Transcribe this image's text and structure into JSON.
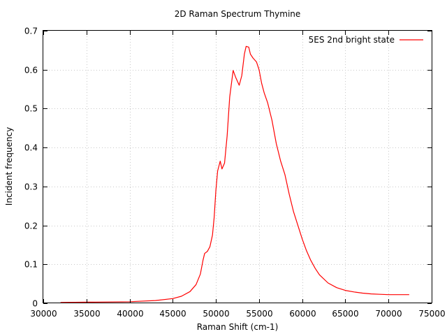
{
  "chart_data": {
    "type": "line",
    "title": "2D Raman Spectrum Thymine",
    "xlabel": "Raman Shift (cm-1)",
    "ylabel": "Incident frequency",
    "xlim": [
      30000,
      75000
    ],
    "ylim": [
      0,
      0.7
    ],
    "x_ticks": [
      "30000",
      "35000",
      "40000",
      "45000",
      "50000",
      "55000",
      "60000",
      "65000",
      "70000",
      "75000"
    ],
    "y_ticks": [
      "0",
      "0.1",
      "0.2",
      "0.3",
      "0.4",
      "0.5",
      "0.6",
      "0.7"
    ],
    "grid": true,
    "legend_position": "top-right",
    "series": [
      {
        "name": "5ES 2nd bright state",
        "color": "#ff0000",
        "x": [
          32000,
          36000,
          40000,
          43000,
          45000,
          46000,
          47000,
          47700,
          48200,
          48500,
          48700,
          49000,
          49300,
          49600,
          49800,
          50000,
          50200,
          50500,
          50700,
          51000,
          51300,
          51600,
          52000,
          52300,
          52700,
          53000,
          53300,
          53500,
          53800,
          54000,
          54300,
          54700,
          55000,
          55300,
          55600,
          56000,
          56500,
          57000,
          57500,
          58000,
          58500,
          59000,
          59500,
          60000,
          60500,
          61000,
          61500,
          62000,
          63000,
          64000,
          65000,
          66000,
          67000,
          68000,
          69000,
          70000,
          71000,
          72400
        ],
        "y": [
          0.002,
          0.003,
          0.004,
          0.007,
          0.012,
          0.018,
          0.03,
          0.048,
          0.075,
          0.11,
          0.128,
          0.133,
          0.145,
          0.175,
          0.22,
          0.29,
          0.34,
          0.365,
          0.345,
          0.36,
          0.43,
          0.53,
          0.598,
          0.58,
          0.56,
          0.585,
          0.64,
          0.66,
          0.658,
          0.64,
          0.63,
          0.62,
          0.6,
          0.565,
          0.54,
          0.515,
          0.47,
          0.41,
          0.365,
          0.33,
          0.28,
          0.235,
          0.2,
          0.165,
          0.135,
          0.11,
          0.09,
          0.073,
          0.052,
          0.04,
          0.033,
          0.029,
          0.026,
          0.024,
          0.023,
          0.022,
          0.022,
          0.022
        ]
      }
    ]
  }
}
